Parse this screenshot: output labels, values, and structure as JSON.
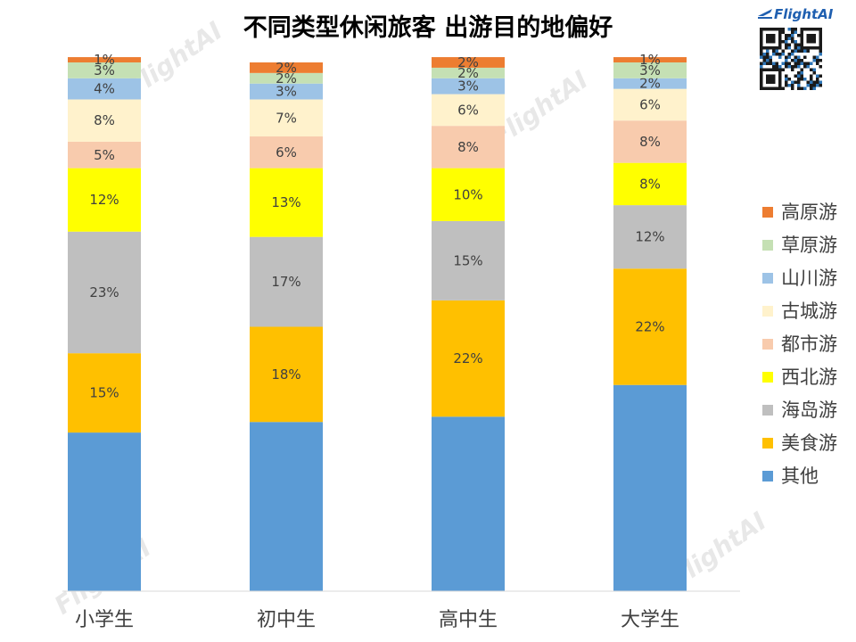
{
  "brand": {
    "name": "FlightAI",
    "watermark": "FlightAI"
  },
  "chart_data": {
    "type": "bar",
    "stacked": true,
    "title": "不同类型休闲旅客 出游目的地偏好",
    "categories": [
      "小学生",
      "初中生",
      "高中生",
      "大学生"
    ],
    "ylim": [
      0,
      100
    ],
    "grid": false,
    "legend_position": "right",
    "series": [
      {
        "name": "其他",
        "color": "#5b9bd5",
        "values": [
          30,
          32,
          33,
          39
        ],
        "labels": [
          "",
          "",
          "",
          ""
        ]
      },
      {
        "name": "美食游",
        "color": "#ffc000",
        "values": [
          15,
          18,
          22,
          22
        ],
        "labels": [
          "15%",
          "18%",
          "22%",
          "22%"
        ]
      },
      {
        "name": "海岛游",
        "color": "#bfbfbf",
        "values": [
          23,
          17,
          15,
          12
        ],
        "labels": [
          "23%",
          "17%",
          "15%",
          "12%"
        ]
      },
      {
        "name": "西北游",
        "color": "#ffff00",
        "values": [
          12,
          13,
          10,
          8
        ],
        "labels": [
          "12%",
          "13%",
          "10%",
          "8%"
        ]
      },
      {
        "name": "都市游",
        "color": "#f8cbad",
        "values": [
          5,
          6,
          8,
          8
        ],
        "labels": [
          "5%",
          "6%",
          "8%",
          "8%"
        ]
      },
      {
        "name": "古城游",
        "color": "#fff2cc",
        "values": [
          8,
          7,
          6,
          6
        ],
        "labels": [
          "8%",
          "7%",
          "6%",
          "6%"
        ]
      },
      {
        "name": "山川游",
        "color": "#9dc3e6",
        "values": [
          4,
          3,
          3,
          2
        ],
        "labels": [
          "4%",
          "3%",
          "3%",
          "2%"
        ]
      },
      {
        "name": "草原游",
        "color": "#c5e0b4",
        "values": [
          3,
          2,
          2,
          3
        ],
        "labels": [
          "3%",
          "2%",
          "2%",
          "3%"
        ]
      },
      {
        "name": "高原游",
        "color": "#ed7d31",
        "values": [
          1,
          2,
          2,
          1
        ],
        "labels": [
          "1%",
          "2%",
          "2%",
          "1%"
        ]
      }
    ]
  }
}
